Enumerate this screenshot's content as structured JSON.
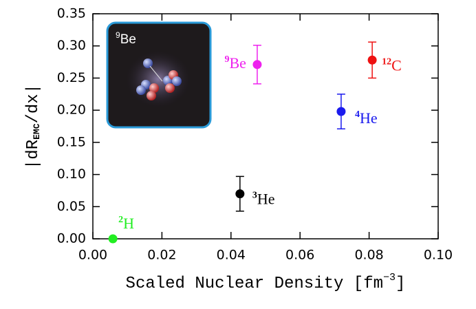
{
  "chart_data": {
    "type": "scatter",
    "x_label": {
      "text": "Scaled Nuclear Density [fm",
      "sup": "−3",
      "end": "]"
    },
    "y_label": {
      "start": "|dR",
      "sub": "EMC",
      "end": "/dx|"
    },
    "xlim": [
      0,
      0.1
    ],
    "ylim": [
      0,
      0.35
    ],
    "xticks": [
      {
        "value": 0,
        "label": "0.00"
      },
      {
        "value": 0.02,
        "label": "0.02"
      },
      {
        "value": 0.04,
        "label": "0.04"
      },
      {
        "value": 0.06,
        "label": "0.06"
      },
      {
        "value": 0.08,
        "label": "0.08"
      },
      {
        "value": 0.1,
        "label": "0.10"
      }
    ],
    "yticks": [
      {
        "value": 0,
        "label": "0.00"
      },
      {
        "value": 0.05,
        "label": "0.05"
      },
      {
        "value": 0.1,
        "label": "0.10"
      },
      {
        "value": 0.15,
        "label": "0.15"
      },
      {
        "value": 0.2,
        "label": "0.20"
      },
      {
        "value": 0.25,
        "label": "0.25"
      },
      {
        "value": 0.3,
        "label": "0.30"
      },
      {
        "value": 0.35,
        "label": "0.35"
      }
    ],
    "series": [
      {
        "mass": "2",
        "symbol": "H",
        "color": "#22ee22",
        "x": [
          0.0058
        ],
        "values": [
          0
        ],
        "errors": [
          0
        ]
      },
      {
        "mass": "3",
        "symbol": "He",
        "color": "#000000",
        "x": [
          0.0426
        ],
        "values": [
          0.07
        ],
        "errors": [
          0.027
        ]
      },
      {
        "mass": "9",
        "symbol": "Be",
        "color": "#ee22ee",
        "x": [
          0.0476
        ],
        "values": [
          0.271
        ],
        "errors": [
          0.03
        ]
      },
      {
        "mass": "4",
        "symbol": "He",
        "color": "#1a1aee",
        "x": [
          0.0719
        ],
        "values": [
          0.198
        ],
        "errors": [
          0.027
        ]
      },
      {
        "mass": "12",
        "symbol": "C",
        "color": "#ee1111",
        "x": [
          0.0809
        ],
        "values": [
          0.278
        ],
        "errors": [
          0.028
        ]
      }
    ],
    "inset": {
      "mass": "9",
      "symbol": "Be"
    }
  }
}
